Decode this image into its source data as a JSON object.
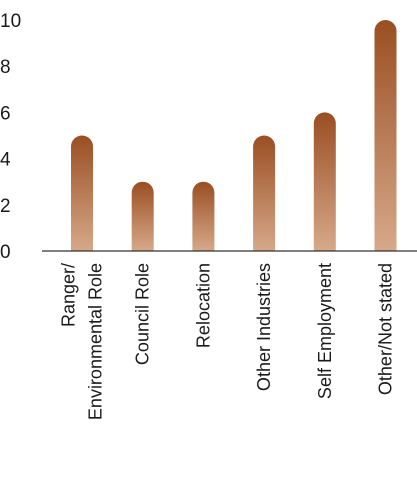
{
  "chart_data": {
    "type": "bar",
    "title": "",
    "xlabel": "",
    "ylabel": "",
    "ylim": [
      0,
      10
    ],
    "yticks": [
      "0",
      "2",
      "4",
      "6",
      "8",
      "10"
    ],
    "categories": [
      [
        "Ranger/",
        "Environmental Role"
      ],
      [
        "Council Role"
      ],
      [
        "Relocation"
      ],
      [
        "Other Industries"
      ],
      [
        "Self Employment"
      ],
      [
        "Other/Not stated"
      ]
    ],
    "values": [
      5,
      3,
      3,
      5,
      6,
      10
    ],
    "grid": false,
    "legend": "none",
    "colors": {
      "bar_top": "#9a4e22",
      "bar_bottom": "#d6a98a",
      "axis": "#333333",
      "text": "#1a1a1a"
    }
  }
}
